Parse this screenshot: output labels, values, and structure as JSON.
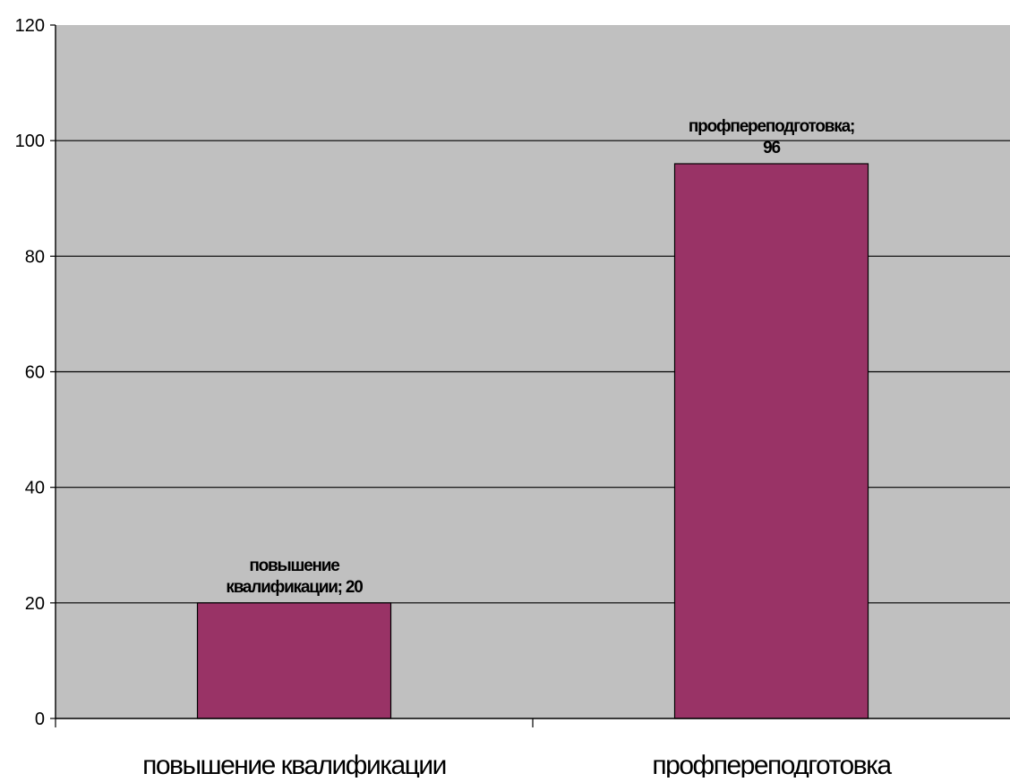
{
  "chart_data": {
    "type": "bar",
    "title": "",
    "xlabel": "",
    "ylabel": "",
    "categories": [
      "повышение квалификации",
      "профпереподготовка"
    ],
    "values": [
      20,
      96
    ],
    "data_labels": [
      [
        "повышение",
        "квалификации; 20"
      ],
      [
        "профпереподготовка;",
        "96"
      ]
    ],
    "ylim": [
      0,
      120
    ],
    "yticks": [
      0,
      20,
      40,
      60,
      80,
      100,
      120
    ],
    "grid": true,
    "legend": "none",
    "colors": {
      "bar": "#993366",
      "plot_background": "#c0c0c0",
      "gridline": "#000000"
    }
  }
}
